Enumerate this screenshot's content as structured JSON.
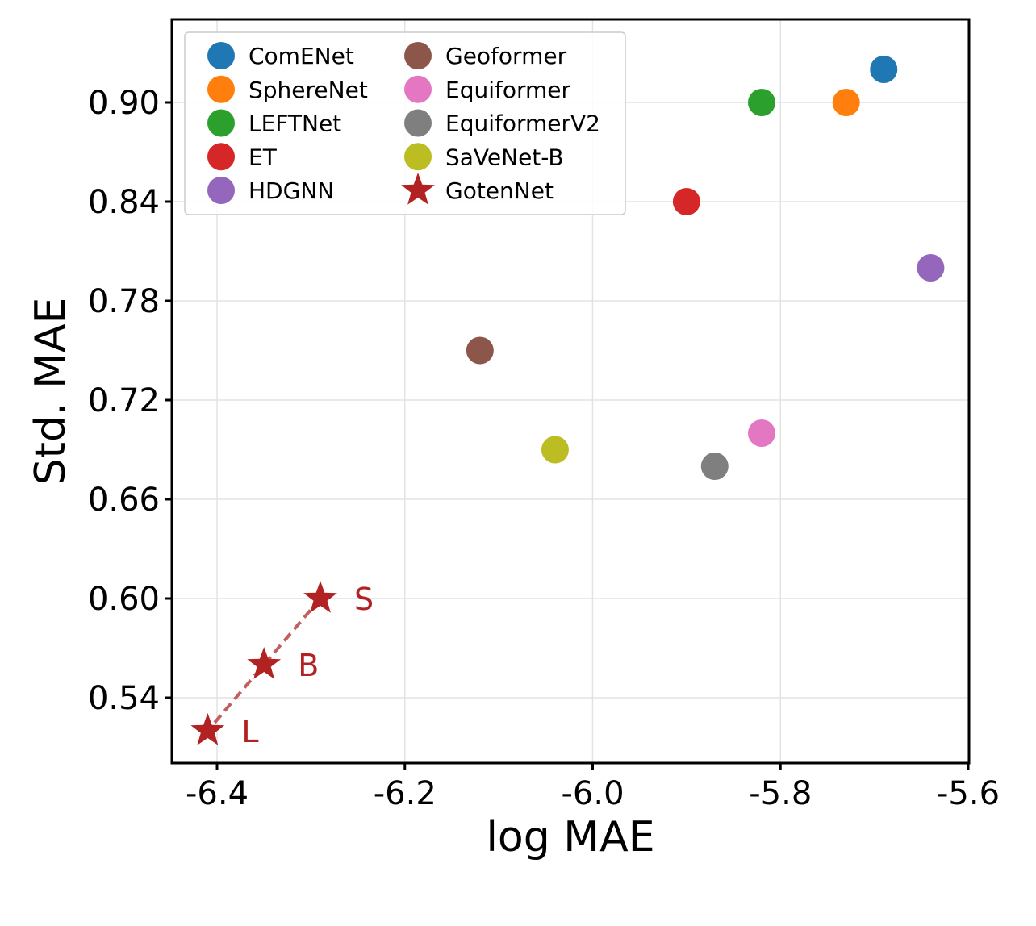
{
  "chart_data": {
    "type": "scatter",
    "title": "",
    "xlabel": "log MAE",
    "ylabel": "Std. MAE",
    "xlim": [
      -6.45,
      -5.6
    ],
    "ylim": [
      0.5,
      0.95
    ],
    "xticks": [
      -6.4,
      -6.2,
      -6.0,
      -5.8,
      -5.6
    ],
    "xtick_labels": [
      "-6.4",
      "-6.2",
      "-6.0",
      "-5.8",
      "-5.6"
    ],
    "yticks": [
      0.54,
      0.6,
      0.66,
      0.72,
      0.78,
      0.84,
      0.9
    ],
    "ytick_labels": [
      "0.54",
      "0.60",
      "0.66",
      "0.72",
      "0.78",
      "0.84",
      "0.90"
    ],
    "grid": true,
    "legend_position": "top-left",
    "series": [
      {
        "name": "ComENet",
        "color": "#1f77b4",
        "marker": "circle",
        "points": [
          {
            "x": -5.69,
            "y": 0.92
          }
        ]
      },
      {
        "name": "SphereNet",
        "color": "#ff7f0e",
        "marker": "circle",
        "points": [
          {
            "x": -5.73,
            "y": 0.9
          }
        ]
      },
      {
        "name": "LEFTNet",
        "color": "#2ca02c",
        "marker": "circle",
        "points": [
          {
            "x": -5.82,
            "y": 0.9
          }
        ]
      },
      {
        "name": "ET",
        "color": "#d62728",
        "marker": "circle",
        "points": [
          {
            "x": -5.9,
            "y": 0.84
          }
        ]
      },
      {
        "name": "HDGNN",
        "color": "#9467bd",
        "marker": "circle",
        "points": [
          {
            "x": -5.64,
            "y": 0.8
          }
        ]
      },
      {
        "name": "Geoformer",
        "color": "#8c564b",
        "marker": "circle",
        "points": [
          {
            "x": -6.12,
            "y": 0.75
          }
        ]
      },
      {
        "name": "Equiformer",
        "color": "#e377c2",
        "marker": "circle",
        "points": [
          {
            "x": -5.82,
            "y": 0.7
          }
        ]
      },
      {
        "name": "EquiformerV2",
        "color": "#7f7f7f",
        "marker": "circle",
        "points": [
          {
            "x": -5.87,
            "y": 0.68
          }
        ]
      },
      {
        "name": "SaVeNet-B",
        "color": "#bcbd22",
        "marker": "circle",
        "points": [
          {
            "x": -6.04,
            "y": 0.69
          }
        ]
      },
      {
        "name": "GotenNet",
        "color": "#b22222",
        "marker": "star",
        "connect": true,
        "points": [
          {
            "x": -6.29,
            "y": 0.6,
            "label": "S"
          },
          {
            "x": -6.35,
            "y": 0.56,
            "label": "B"
          },
          {
            "x": -6.41,
            "y": 0.52,
            "label": "L"
          }
        ]
      }
    ],
    "legend_order": [
      "ComENet",
      "SphereNet",
      "LEFTNet",
      "ET",
      "HDGNN",
      "Geoformer",
      "Equiformer",
      "EquiformerV2",
      "SaVeNet-B",
      "GotenNet"
    ]
  }
}
